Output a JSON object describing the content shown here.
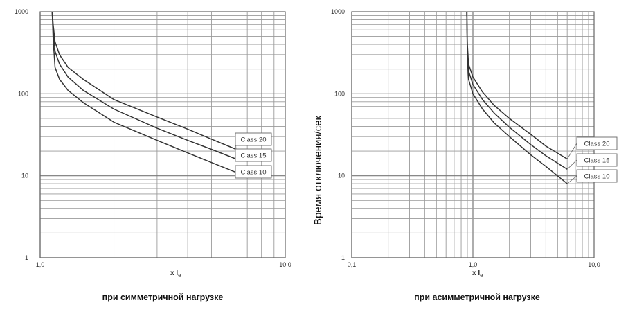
{
  "y_axis_label": "Время отключения/сек",
  "chart_data": [
    {
      "type": "line",
      "caption": "при симметричной нагрузке",
      "xscale": "log",
      "yscale": "log",
      "xlim": [
        1,
        10
      ],
      "ylim": [
        1,
        1000
      ],
      "grid": true,
      "xlabel_main": "x I",
      "xlabel_sub": "e",
      "x_ticks": [
        {
          "value": 1,
          "label": "1,0"
        },
        {
          "value": 10,
          "label": "10,0"
        }
      ],
      "y_ticks": [
        {
          "value": 1000,
          "label": "1000"
        },
        {
          "value": 100,
          "label": "100"
        },
        {
          "value": 10,
          "label": "10"
        },
        {
          "value": 1,
          "label": "1"
        }
      ],
      "legend_placement": "right",
      "series": [
        {
          "name": "Class 20",
          "x": [
            1.12,
            1.13,
            1.15,
            1.2,
            1.3,
            1.5,
            2,
            3,
            4,
            5,
            6.3
          ],
          "y": [
            1000,
            700,
            430,
            300,
            210,
            150,
            85,
            52,
            37,
            28,
            21
          ]
        },
        {
          "name": "Class 15",
          "x": [
            1.12,
            1.13,
            1.15,
            1.2,
            1.3,
            1.5,
            2,
            3,
            4,
            5,
            6.3
          ],
          "y": [
            1000,
            600,
            330,
            230,
            160,
            110,
            65,
            38,
            27,
            21,
            16
          ]
        },
        {
          "name": "Class 10",
          "x": [
            1.12,
            1.13,
            1.15,
            1.2,
            1.3,
            1.5,
            2,
            3,
            4,
            5,
            6.3
          ],
          "y": [
            1000,
            460,
            210,
            150,
            110,
            78,
            45,
            27,
            19,
            14.5,
            11
          ]
        }
      ]
    },
    {
      "type": "line",
      "caption": "при асимметричной нагрузке",
      "xscale": "log",
      "yscale": "log",
      "xlim": [
        0.1,
        10
      ],
      "ylim": [
        1,
        1000
      ],
      "grid": true,
      "xlabel_main": "x I",
      "xlabel_sub": "e",
      "x_ticks": [
        {
          "value": 0.1,
          "label": "0,1"
        },
        {
          "value": 1,
          "label": "1,0"
        },
        {
          "value": 10,
          "label": "10,0"
        }
      ],
      "y_ticks": [
        {
          "value": 1000,
          "label": "1000"
        },
        {
          "value": 100,
          "label": "100"
        },
        {
          "value": 10,
          "label": "10"
        },
        {
          "value": 1,
          "label": "1"
        }
      ],
      "legend_placement": "right",
      "series": [
        {
          "name": "Class 20",
          "x": [
            0.89,
            0.9,
            0.92,
            1,
            1.2,
            1.5,
            2,
            3,
            4,
            6
          ],
          "y": [
            1000,
            400,
            230,
            160,
            105,
            72,
            50,
            32,
            23,
            16
          ]
        },
        {
          "name": "Class 15",
          "x": [
            0.89,
            0.9,
            0.92,
            1,
            1.2,
            1.5,
            2,
            3,
            4,
            6
          ],
          "y": [
            1000,
            340,
            190,
            130,
            85,
            58,
            39,
            24,
            17.5,
            12
          ]
        },
        {
          "name": "Class 10",
          "x": [
            0.89,
            0.9,
            0.92,
            1,
            1.2,
            1.5,
            2,
            3,
            4,
            6
          ],
          "y": [
            1000,
            270,
            150,
            100,
            65,
            44,
            30,
            18,
            13,
            8
          ]
        }
      ]
    }
  ]
}
